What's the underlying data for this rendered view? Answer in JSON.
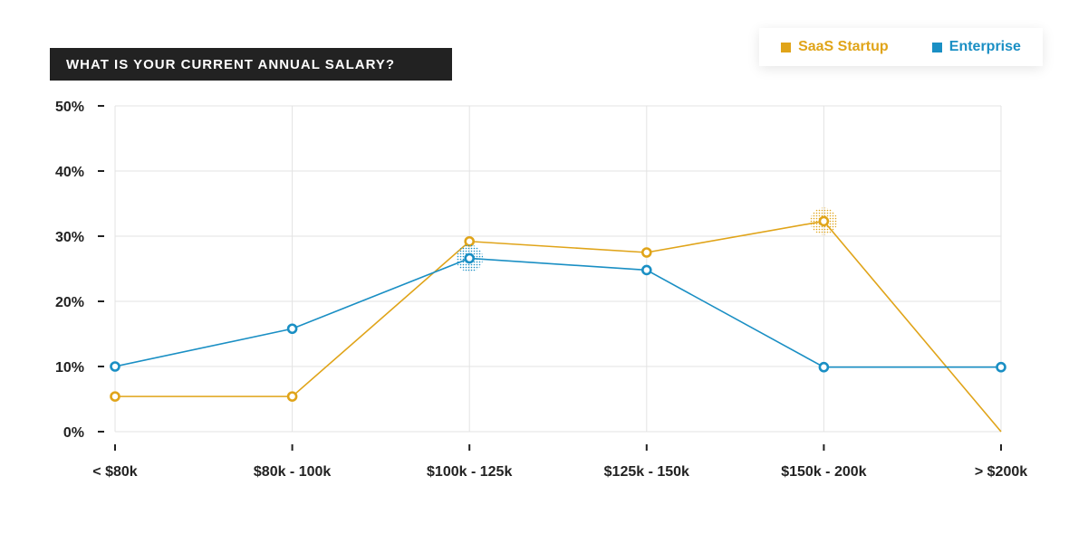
{
  "chart_data": {
    "type": "line",
    "title": "WHAT IS YOUR CURRENT ANNUAL SALARY?",
    "categories": [
      "< $80k",
      "$80k - 100k",
      "$100k - 125k",
      "$125k - 150k",
      "$150k - 200k",
      "> $200k"
    ],
    "y_ticks": [
      "0%",
      "10%",
      "20%",
      "30%",
      "40%",
      "50%"
    ],
    "ylim": [
      0,
      50
    ],
    "grid": true,
    "legend_position": "top-right",
    "series": [
      {
        "name": "SaaS Startup",
        "color": "#e0a419",
        "values": [
          5.4,
          5.4,
          29.2,
          27.5,
          32.3,
          0
        ],
        "highlight_index": 4
      },
      {
        "name": "Enterprise",
        "color": "#1a8fc4",
        "values": [
          10.0,
          15.8,
          26.6,
          24.8,
          9.9,
          9.9
        ],
        "highlight_index": 2
      }
    ]
  }
}
